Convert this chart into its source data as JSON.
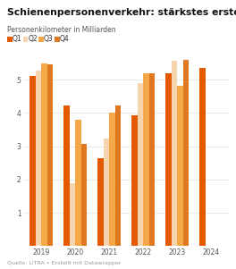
{
  "title": "Schienenpersonenverkehr: stärkstes erstes Quartal",
  "subtitle": "Personenkilometer in Milliarden",
  "source": "Quelle: LITRA • Erstellt mit Datawrapper",
  "years": [
    2019,
    2020,
    2021,
    2022,
    2023,
    2024
  ],
  "quarters": [
    "Q1",
    "Q2",
    "Q3",
    "Q4"
  ],
  "colors": [
    "#e55a00",
    "#f7d4b0",
    "#f5a84a",
    "#e07820"
  ],
  "data": {
    "Q1": [
      5.12,
      4.22,
      2.65,
      3.92,
      5.18,
      5.36
    ],
    "Q2": [
      5.28,
      1.9,
      3.22,
      4.9,
      5.58,
      null
    ],
    "Q3": [
      5.48,
      3.8,
      4.0,
      5.18,
      4.82,
      null
    ],
    "Q4": [
      5.45,
      3.06,
      4.22,
      5.18,
      5.6,
      null
    ]
  },
  "ylim": [
    0,
    5.9
  ],
  "yticks": [
    1,
    2,
    3,
    4,
    5
  ],
  "background_color": "#ffffff",
  "bar_width": 0.17,
  "title_fontsize": 7.8,
  "subtitle_fontsize": 5.5,
  "legend_fontsize": 5.5,
  "tick_fontsize": 5.5,
  "source_fontsize": 4.5
}
